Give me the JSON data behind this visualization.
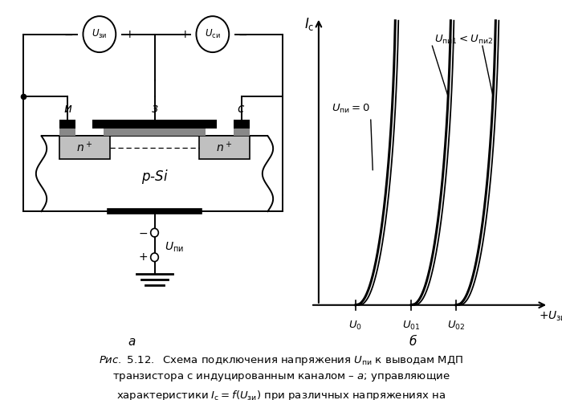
{
  "fig_width": 7.0,
  "fig_height": 4.98,
  "dpi": 100,
  "bg_color": "#ffffff",
  "black": "#000000",
  "gray": "#888888",
  "lgray": "#c0c0c0",
  "dgray": "#444444"
}
